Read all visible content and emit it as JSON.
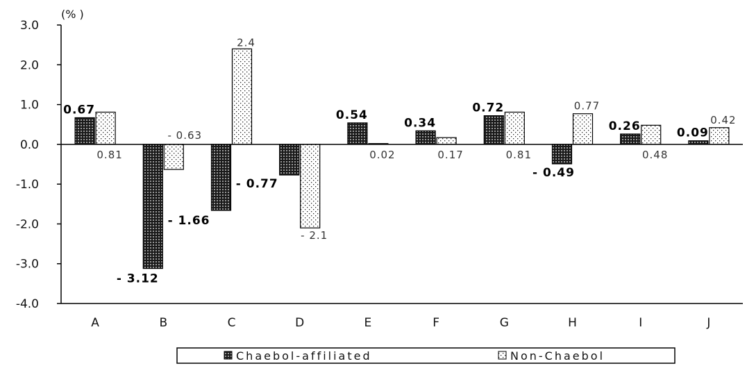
{
  "chart_data": {
    "type": "bar",
    "unit_label": "(% )",
    "categories": [
      "A",
      "B",
      "C",
      "D",
      "E",
      "F",
      "G",
      "H",
      "I",
      "J"
    ],
    "y_ticks": [
      "3.0",
      "2.0",
      "1.0",
      "0.0",
      "-1.0",
      "-2.0",
      "-3.0",
      "-4.0"
    ],
    "ylim": [
      -4,
      3
    ],
    "grid": false,
    "legend_position": "bottom",
    "series": [
      {
        "name": "Chaebol-affiliated",
        "values": [
          0.67,
          -3.12,
          -1.66,
          -0.77,
          0.54,
          0.34,
          0.72,
          -0.49,
          0.26,
          0.09
        ],
        "labels": [
          "0.67",
          "- 3.12",
          "- 1.66",
          "- 0.77",
          "0.54",
          "0.34",
          "0.72",
          "- 0.49",
          "0.26",
          "0.09"
        ]
      },
      {
        "name": "Non-Chaebol",
        "values": [
          0.81,
          -0.63,
          2.4,
          -2.1,
          0.02,
          0.17,
          0.81,
          0.77,
          0.48,
          0.42
        ],
        "labels": [
          "0.81",
          "- 0.63",
          "2.4",
          "- 2.1",
          "0.02",
          "0.17",
          "0.81",
          "0.77",
          "0.48",
          "0.42"
        ]
      }
    ]
  }
}
